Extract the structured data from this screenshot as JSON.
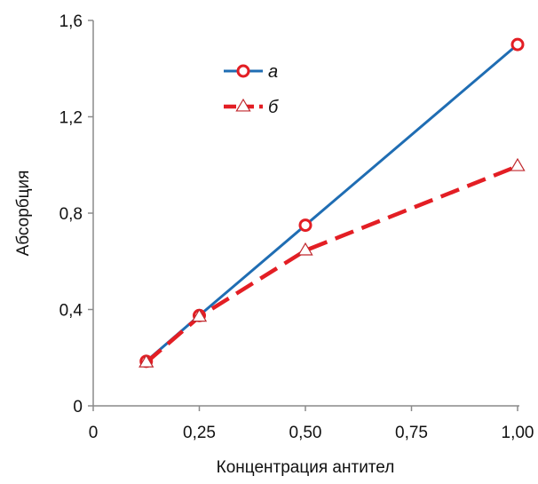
{
  "chart_data": {
    "type": "line",
    "title": "",
    "xlabel": "Концентрация антител",
    "ylabel": "Абсорбция",
    "xlim": [
      0,
      1.0
    ],
    "ylim": [
      0,
      1.6
    ],
    "x_ticks": [
      0,
      0.25,
      0.5,
      0.75,
      1.0
    ],
    "x_tick_labels": [
      "0",
      "0,25",
      "0,50",
      "0,75",
      "1,00"
    ],
    "y_ticks": [
      0,
      0.4,
      0.8,
      1.2,
      1.6
    ],
    "y_tick_labels": [
      "0",
      "0,4",
      "0,8",
      "1,2",
      "1,6"
    ],
    "grid": false,
    "legend_position": "top-center",
    "series": [
      {
        "name": "а",
        "color": "#1f6db3",
        "marker_color": "#e31e24",
        "marker": "circle",
        "line_style": "solid",
        "x": [
          0.125,
          0.25,
          0.5,
          1.0
        ],
        "y": [
          0.185,
          0.375,
          0.75,
          1.5
        ]
      },
      {
        "name": "б",
        "color": "#e31e24",
        "marker_color": "#c0282d",
        "marker": "triangle",
        "line_style": "dashed",
        "x": [
          0.125,
          0.25,
          0.5,
          1.0
        ],
        "y": [
          0.18,
          0.37,
          0.645,
          0.995
        ]
      }
    ]
  }
}
